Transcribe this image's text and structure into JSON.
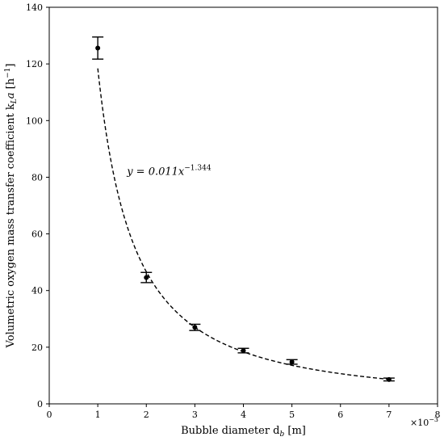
{
  "chart_data": {
    "type": "scatter",
    "xlabel": "Bubble diameter d",
    "xlabel_sub": "b",
    "xlabel_unit": " [m]",
    "ylabel_prefix": "Volumetric oxygen mass transfer coefficient k",
    "ylabel_sub": "L",
    "ylabel_a": "a",
    "ylabel_unit_open": " [h",
    "ylabel_unit_exp": "−1",
    "ylabel_unit_close": "]",
    "x_scale_label": "×10",
    "x_scale_exp": "−3",
    "xlim": [
      0,
      8
    ],
    "ylim": [
      0,
      140
    ],
    "xticks": [
      "0",
      "1",
      "2",
      "3",
      "4",
      "5",
      "6",
      "7",
      "8"
    ],
    "yticks": [
      "0",
      "20",
      "40",
      "60",
      "80",
      "100",
      "120",
      "140"
    ],
    "x_tick_values": [
      0,
      1,
      2,
      3,
      4,
      5,
      6,
      7,
      8
    ],
    "y_tick_values": [
      0,
      20,
      40,
      60,
      80,
      100,
      120,
      140
    ],
    "series": [
      {
        "x": [
          1,
          2,
          3,
          4,
          5,
          7
        ],
        "y": [
          125.6,
          44.6,
          27.0,
          18.8,
          14.8,
          8.6
        ],
        "yerr": [
          3.9,
          1.8,
          1.1,
          0.8,
          0.8,
          0.5
        ]
      }
    ],
    "fit": {
      "type": "power",
      "coef": 0.011,
      "exponent": -1.344,
      "x_range": [
        1,
        7
      ],
      "line_style": "dashed"
    },
    "annotation": {
      "eq_y": "y = 0.011x",
      "eq_exp": "−1.344",
      "x": 1.6,
      "y": 80
    },
    "grid": false,
    "legend": "none"
  }
}
